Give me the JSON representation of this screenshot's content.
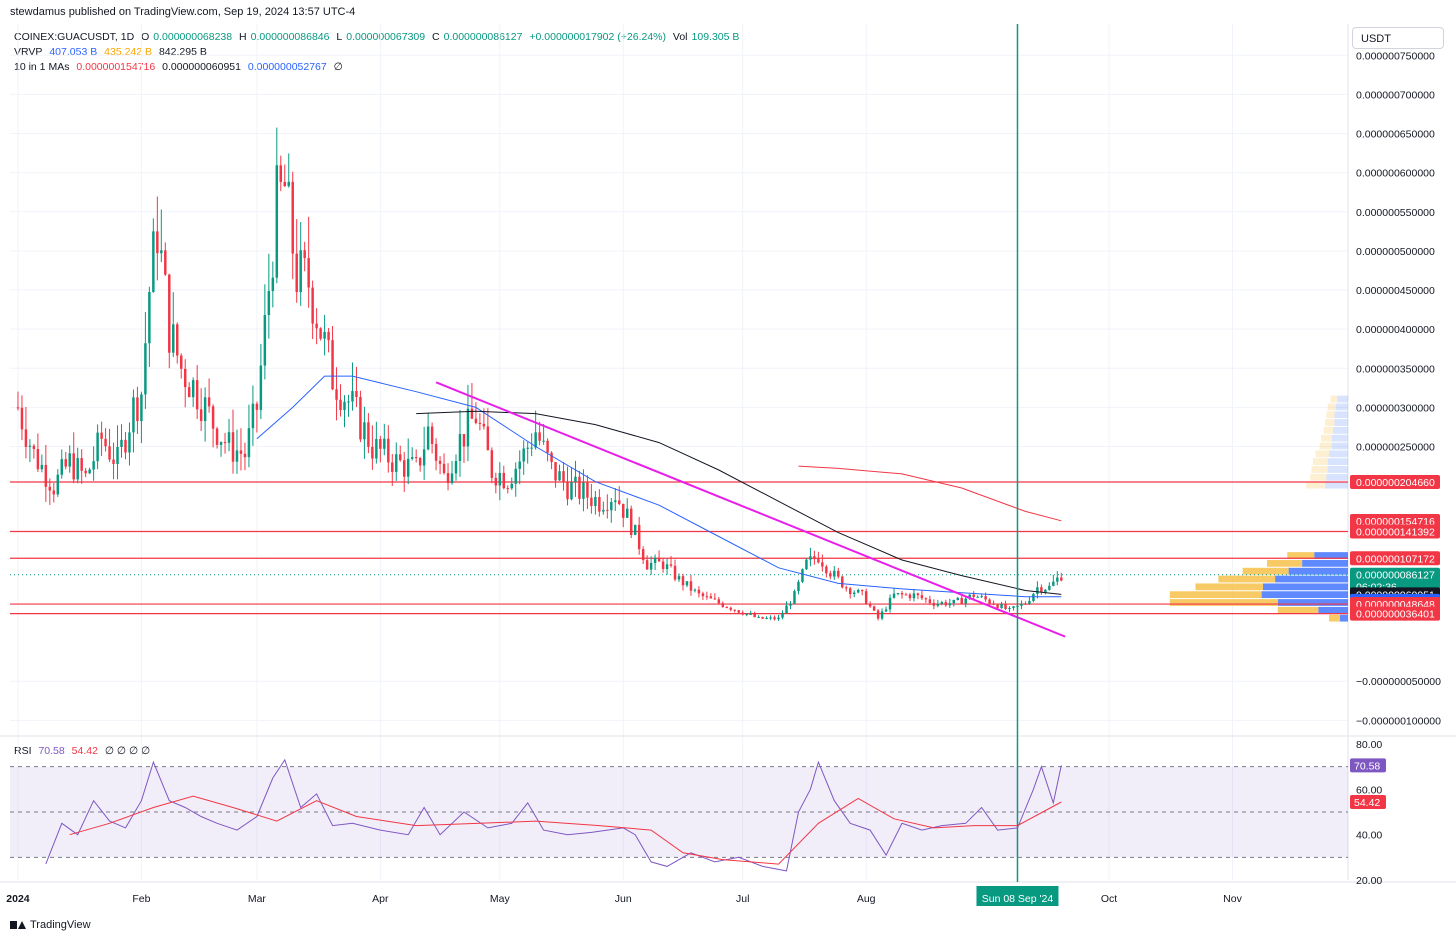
{
  "header": {
    "published": "stewdamus published on TradingView.com, Sep 19, 2024 13:57 UTC-4"
  },
  "legend": {
    "symbol": "COINEX:GUACUSDT, 1D",
    "open_label": "O",
    "open": "0.000000068238",
    "high_label": "H",
    "high": "0.000000086846",
    "low_label": "L",
    "low": "0.000000067309",
    "close_label": "C",
    "close": "0.000000086127",
    "change": "+0.000000017902 (+26.24%)",
    "vol_label": "Vol",
    "vol": "109.305 B",
    "vrvp_label": "VRVP",
    "vrvp_up": "407.053 B",
    "vrvp_down": "435.242 B",
    "vrvp_total": "842.295 B",
    "ma_label": "10 in 1 MAs",
    "ma1": "0.000000154716",
    "ma2": "0.000000060951",
    "ma3": "0.000000052767",
    "ma_eye": "∅",
    "rsi_label": "RSI",
    "rsi": "70.58",
    "rsi_ma": "54.42",
    "rsi_extra": "∅ ∅ ∅ ∅"
  },
  "currency_button": "USDT",
  "footer": {
    "brand": "TradingView",
    "logo_icon": "tradingview-logo-icon"
  },
  "colors": {
    "up": "#089981",
    "down": "#f23645",
    "ma_blue": "#2962ff",
    "ma_black": "#131722",
    "ma_red": "#f23645",
    "trendline": "#e91ee9",
    "rsi": "#7e57c2",
    "rsi_ma": "#f23645",
    "level": "#f23645",
    "vline": "#089981"
  },
  "chart_data": {
    "type": "candlestick",
    "price_axis": {
      "range": [
        -1.2e-07,
        7.9e-07
      ],
      "ticks": [
        {
          "v": 7.5e-07,
          "label": "0.000000750000"
        },
        {
          "v": 7e-07,
          "label": "0.000000700000"
        },
        {
          "v": 6.5e-07,
          "label": "0.000000650000"
        },
        {
          "v": 6e-07,
          "label": "0.000000600000"
        },
        {
          "v": 5.5e-07,
          "label": "0.000000550000"
        },
        {
          "v": 5e-07,
          "label": "0.000000500000"
        },
        {
          "v": 4.5e-07,
          "label": "0.000000450000"
        },
        {
          "v": 4e-07,
          "label": "0.000000400000"
        },
        {
          "v": 3.5e-07,
          "label": "0.000000350000"
        },
        {
          "v": 3e-07,
          "label": "0.000000300000"
        },
        {
          "v": 2.5e-07,
          "label": "0.000000250000"
        },
        {
          "v": -5e-08,
          "label": "−0.000000050000"
        },
        {
          "v": -1e-07,
          "label": "−0.000000100000"
        }
      ],
      "price_labels": [
        {
          "v": 2.0466e-07,
          "label": "0.000000204660",
          "bg": "#f23645",
          "fg": "#ffffff"
        },
        {
          "v": 1.54716e-07,
          "label": "0.000000154716",
          "bg": "#f23645",
          "fg": "#ffffff"
        },
        {
          "v": 1.41392e-07,
          "label": "0.000000141392",
          "bg": "#f23645",
          "fg": "#ffffff"
        },
        {
          "v": 1.07172e-07,
          "label": "0.000000107172",
          "bg": "#f23645",
          "fg": "#ffffff"
        },
        {
          "v": 8.6127e-08,
          "label": "0.000000086127",
          "sub": "06:02:36",
          "bg": "#089981",
          "fg": "#ffffff"
        },
        {
          "v": 6.0951e-08,
          "label": "0.000000060951",
          "bg": "#131722",
          "fg": "#ffffff"
        },
        {
          "v": 5.2767e-08,
          "label": "0.000000052767",
          "bg": "#2962ff",
          "fg": "#ffffff"
        },
        {
          "v": 4.8648e-08,
          "label": "0.000000048648",
          "bg": "#f23645",
          "fg": "#ffffff"
        },
        {
          "v": 3.6401e-08,
          "label": "0.000000036401",
          "bg": "#f23645",
          "fg": "#ffffff"
        }
      ]
    },
    "time_axis": {
      "range": [
        "2023-12-30",
        "2024-11-30"
      ],
      "ticks": [
        {
          "date": "2024-01-01",
          "label": "2024",
          "bold": true
        },
        {
          "date": "2024-02-01",
          "label": "Feb"
        },
        {
          "date": "2024-03-01",
          "label": "Mar"
        },
        {
          "date": "2024-04-01",
          "label": "Apr"
        },
        {
          "date": "2024-05-01",
          "label": "May"
        },
        {
          "date": "2024-06-01",
          "label": "Jun"
        },
        {
          "date": "2024-07-01",
          "label": "Jul"
        },
        {
          "date": "2024-08-01",
          "label": "Aug"
        },
        {
          "date": "2024-10-01",
          "label": "Oct"
        },
        {
          "date": "2024-11-01",
          "label": "Nov"
        }
      ],
      "crosshair": {
        "date": "2024-09-08",
        "label": "Sun 08 Sep '24"
      }
    },
    "horizontal_levels": [
      2.0466e-07,
      1.41392e-07,
      1.07172e-07,
      4.8648e-08,
      3.6401e-08
    ],
    "last_price": 8.6127e-08,
    "trendline": {
      "from": {
        "date": "2024-04-15",
        "v": 3.32e-07
      },
      "to": {
        "date": "2024-09-20",
        "v": 7e-09
      }
    },
    "moving_averages": [
      {
        "color": "#2962ff",
        "points": [
          [
            "2024-03-01",
            2.6e-07
          ],
          [
            "2024-03-10",
            3e-07
          ],
          [
            "2024-03-18",
            3.4e-07
          ],
          [
            "2024-03-25",
            3.4e-07
          ],
          [
            "2024-04-10",
            3.2e-07
          ],
          [
            "2024-04-25",
            3e-07
          ],
          [
            "2024-05-10",
            2.5e-07
          ],
          [
            "2024-05-25",
            2.05e-07
          ],
          [
            "2024-06-10",
            1.75e-07
          ],
          [
            "2024-06-25",
            1.35e-07
          ],
          [
            "2024-07-10",
            9.5e-08
          ],
          [
            "2024-07-25",
            7.5e-08
          ],
          [
            "2024-08-10",
            6.8e-08
          ],
          [
            "2024-08-25",
            6.3e-08
          ],
          [
            "2024-09-10",
            5.8e-08
          ],
          [
            "2024-09-19",
            5.8e-08
          ]
        ]
      },
      {
        "color": "#131722",
        "points": [
          [
            "2024-04-10",
            2.92e-07
          ],
          [
            "2024-04-25",
            2.95e-07
          ],
          [
            "2024-05-10",
            2.92e-07
          ],
          [
            "2024-05-25",
            2.78e-07
          ],
          [
            "2024-06-10",
            2.55e-07
          ],
          [
            "2024-06-25",
            2.2e-07
          ],
          [
            "2024-07-10",
            1.8e-07
          ],
          [
            "2024-07-25",
            1.4e-07
          ],
          [
            "2024-08-10",
            1.05e-07
          ],
          [
            "2024-08-25",
            8.5e-08
          ],
          [
            "2024-09-10",
            6.6e-08
          ],
          [
            "2024-09-19",
            6.1e-08
          ]
        ]
      },
      {
        "color": "#f23645",
        "points": [
          [
            "2024-07-15",
            2.25e-07
          ],
          [
            "2024-07-25",
            2.22e-07
          ],
          [
            "2024-08-10",
            2.15e-07
          ],
          [
            "2024-08-25",
            1.97e-07
          ],
          [
            "2024-09-10",
            1.67e-07
          ],
          [
            "2024-09-19",
            1.55e-07
          ]
        ]
      }
    ],
    "candles_anchor": [
      [
        "2024-01-01",
        3e-07
      ],
      [
        "2024-01-05",
        2.4e-07
      ],
      [
        "2024-01-10",
        2e-07
      ],
      [
        "2024-01-14",
        2.3e-07
      ],
      [
        "2024-01-18",
        2.1e-07
      ],
      [
        "2024-01-22",
        2.6e-07
      ],
      [
        "2024-01-26",
        2.3e-07
      ],
      [
        "2024-01-30",
        3e-07
      ],
      [
        "2024-02-01",
        3.2e-07
      ],
      [
        "2024-02-03",
        4.5e-07
      ],
      [
        "2024-02-05",
        5.3e-07
      ],
      [
        "2024-02-08",
        4e-07
      ],
      [
        "2024-02-11",
        3.5e-07
      ],
      [
        "2024-02-15",
        3.2e-07
      ],
      [
        "2024-02-19",
        2.8e-07
      ],
      [
        "2024-02-23",
        2.5e-07
      ],
      [
        "2024-02-27",
        2.4e-07
      ],
      [
        "2024-03-01",
        3e-07
      ],
      [
        "2024-03-03",
        4e-07
      ],
      [
        "2024-03-06",
        5.6e-07
      ],
      [
        "2024-03-08",
        5.8e-07
      ],
      [
        "2024-03-11",
        4.7e-07
      ],
      [
        "2024-03-14",
        4.6e-07
      ],
      [
        "2024-03-17",
        4e-07
      ],
      [
        "2024-03-20",
        3.4e-07
      ],
      [
        "2024-03-25",
        3e-07
      ],
      [
        "2024-03-30",
        2.5e-07
      ],
      [
        "2024-04-05",
        2.3e-07
      ],
      [
        "2024-04-10",
        2.2e-07
      ],
      [
        "2024-04-13",
        2.7e-07
      ],
      [
        "2024-04-17",
        2.1e-07
      ],
      [
        "2024-04-20",
        2.5e-07
      ],
      [
        "2024-04-25",
        2.9e-07
      ],
      [
        "2024-04-29",
        2.2e-07
      ],
      [
        "2024-05-03",
        2.1e-07
      ],
      [
        "2024-05-07",
        2.4e-07
      ],
      [
        "2024-05-10",
        2.7e-07
      ],
      [
        "2024-05-14",
        2.2e-07
      ],
      [
        "2024-05-18",
        2e-07
      ],
      [
        "2024-05-22",
        1.9e-07
      ],
      [
        "2024-05-26",
        1.8e-07
      ],
      [
        "2024-05-30",
        1.9e-07
      ],
      [
        "2024-06-03",
        1.5e-07
      ],
      [
        "2024-06-07",
        1e-07
      ],
      [
        "2024-06-11",
        1e-07
      ],
      [
        "2024-06-15",
        8e-08
      ],
      [
        "2024-06-20",
        6e-08
      ],
      [
        "2024-06-25",
        5e-08
      ],
      [
        "2024-06-30",
        4e-08
      ],
      [
        "2024-07-05",
        3e-08
      ],
      [
        "2024-07-10",
        3e-08
      ],
      [
        "2024-07-14",
        6e-08
      ],
      [
        "2024-07-17",
        1e-07
      ],
      [
        "2024-07-20",
        1.1e-07
      ],
      [
        "2024-07-23",
        9e-08
      ],
      [
        "2024-07-27",
        7e-08
      ],
      [
        "2024-07-31",
        6e-08
      ],
      [
        "2024-08-04",
        3e-08
      ],
      [
        "2024-08-08",
        6e-08
      ],
      [
        "2024-08-13",
        6e-08
      ],
      [
        "2024-08-18",
        5e-08
      ],
      [
        "2024-08-23",
        5e-08
      ],
      [
        "2024-08-28",
        6e-08
      ],
      [
        "2024-09-02",
        5e-08
      ],
      [
        "2024-09-06",
        4e-08
      ],
      [
        "2024-09-10",
        5e-08
      ],
      [
        "2024-09-13",
        7e-08
      ],
      [
        "2024-09-16",
        7e-08
      ],
      [
        "2024-09-19",
        8.6e-08
      ]
    ],
    "rsi": {
      "range": [
        20,
        80
      ],
      "ticks": [
        {
          "v": 80,
          "label": "80.00"
        },
        {
          "v": 60,
          "label": "60.00"
        },
        {
          "v": 40,
          "label": "40.00"
        },
        {
          "v": 20,
          "label": "20.00"
        }
      ],
      "bands": [
        70,
        50,
        30
      ],
      "value_labels": [
        {
          "v": 70.58,
          "label": "70.58",
          "bg": "#7e57c2"
        },
        {
          "v": 54.42,
          "label": "54.42",
          "bg": "#f23645"
        }
      ],
      "line": [
        [
          "2024-01-08",
          27
        ],
        [
          "2024-01-12",
          45
        ],
        [
          "2024-01-16",
          40
        ],
        [
          "2024-01-20",
          55
        ],
        [
          "2024-01-24",
          46
        ],
        [
          "2024-01-28",
          43
        ],
        [
          "2024-02-01",
          55
        ],
        [
          "2024-02-04",
          72
        ],
        [
          "2024-02-08",
          55
        ],
        [
          "2024-02-12",
          52
        ],
        [
          "2024-02-16",
          48
        ],
        [
          "2024-02-20",
          45
        ],
        [
          "2024-02-25",
          42
        ],
        [
          "2024-03-01",
          48
        ],
        [
          "2024-03-05",
          65
        ],
        [
          "2024-03-08",
          73
        ],
        [
          "2024-03-12",
          52
        ],
        [
          "2024-03-16",
          58
        ],
        [
          "2024-03-20",
          44
        ],
        [
          "2024-03-25",
          45
        ],
        [
          "2024-04-01",
          42
        ],
        [
          "2024-04-08",
          40
        ],
        [
          "2024-04-12",
          52
        ],
        [
          "2024-04-16",
          40
        ],
        [
          "2024-04-22",
          50
        ],
        [
          "2024-04-28",
          43
        ],
        [
          "2024-05-04",
          45
        ],
        [
          "2024-05-08",
          54
        ],
        [
          "2024-05-12",
          42
        ],
        [
          "2024-05-18",
          40
        ],
        [
          "2024-05-24",
          41
        ],
        [
          "2024-06-01",
          43
        ],
        [
          "2024-06-04",
          40
        ],
        [
          "2024-06-08",
          28
        ],
        [
          "2024-06-12",
          26
        ],
        [
          "2024-06-18",
          32
        ],
        [
          "2024-06-24",
          28
        ],
        [
          "2024-06-30",
          30
        ],
        [
          "2024-07-06",
          26
        ],
        [
          "2024-07-12",
          24
        ],
        [
          "2024-07-15",
          50
        ],
        [
          "2024-07-18",
          60
        ],
        [
          "2024-07-20",
          72
        ],
        [
          "2024-07-24",
          55
        ],
        [
          "2024-07-28",
          45
        ],
        [
          "2024-08-02",
          42
        ],
        [
          "2024-08-06",
          31
        ],
        [
          "2024-08-10",
          45
        ],
        [
          "2024-08-15",
          42
        ],
        [
          "2024-08-20",
          44
        ],
        [
          "2024-08-26",
          45
        ],
        [
          "2024-08-30",
          52
        ],
        [
          "2024-09-03",
          42
        ],
        [
          "2024-09-08",
          43
        ],
        [
          "2024-09-12",
          60
        ],
        [
          "2024-09-14",
          70
        ],
        [
          "2024-09-17",
          54
        ],
        [
          "2024-09-19",
          70.58
        ]
      ],
      "ma": [
        [
          "2024-01-14",
          40
        ],
        [
          "2024-01-24",
          45
        ],
        [
          "2024-02-04",
          52
        ],
        [
          "2024-02-14",
          57
        ],
        [
          "2024-02-24",
          52
        ],
        [
          "2024-03-06",
          46
        ],
        [
          "2024-03-16",
          55
        ],
        [
          "2024-03-26",
          48
        ],
        [
          "2024-04-10",
          44
        ],
        [
          "2024-04-26",
          45
        ],
        [
          "2024-05-10",
          46
        ],
        [
          "2024-05-26",
          44
        ],
        [
          "2024-06-08",
          42
        ],
        [
          "2024-06-16",
          32
        ],
        [
          "2024-06-26",
          29
        ],
        [
          "2024-07-10",
          27
        ],
        [
          "2024-07-20",
          45
        ],
        [
          "2024-07-30",
          56
        ],
        [
          "2024-08-08",
          47
        ],
        [
          "2024-08-18",
          43
        ],
        [
          "2024-08-28",
          44
        ],
        [
          "2024-09-08",
          44
        ],
        [
          "2024-09-19",
          54.42
        ]
      ]
    },
    "volume_profile": [
      {
        "v": 3.1e-07,
        "up": 5,
        "dn": 8
      },
      {
        "v": 3e-07,
        "up": 6,
        "dn": 9
      },
      {
        "v": 2.9e-07,
        "up": 6,
        "dn": 10
      },
      {
        "v": 2.8e-07,
        "up": 7,
        "dn": 10
      },
      {
        "v": 2.7e-07,
        "up": 7,
        "dn": 11
      },
      {
        "v": 2.6e-07,
        "up": 8,
        "dn": 12
      },
      {
        "v": 2.5e-07,
        "up": 9,
        "dn": 12
      },
      {
        "v": 2.4e-07,
        "up": 10,
        "dn": 14
      },
      {
        "v": 2.3e-07,
        "up": 11,
        "dn": 15
      },
      {
        "v": 2.2e-07,
        "up": 12,
        "dn": 15
      },
      {
        "v": 2.1e-07,
        "up": 12,
        "dn": 16
      },
      {
        "v": 2e-07,
        "up": 14,
        "dn": 17
      },
      {
        "v": 1.1e-07,
        "up": 20,
        "dn": 25
      },
      {
        "v": 1e-07,
        "up": 26,
        "dn": 34
      },
      {
        "v": 9e-08,
        "up": 34,
        "dn": 44
      },
      {
        "v": 8e-08,
        "up": 42,
        "dn": 54
      },
      {
        "v": 7e-08,
        "up": 50,
        "dn": 63
      },
      {
        "v": 6e-08,
        "up": 68,
        "dn": 64
      },
      {
        "v": 5e-08,
        "up": 80,
        "dn": 52
      },
      {
        "v": 4e-08,
        "up": 30,
        "dn": 22
      },
      {
        "v": 3e-08,
        "up": 8,
        "dn": 6
      }
    ]
  }
}
